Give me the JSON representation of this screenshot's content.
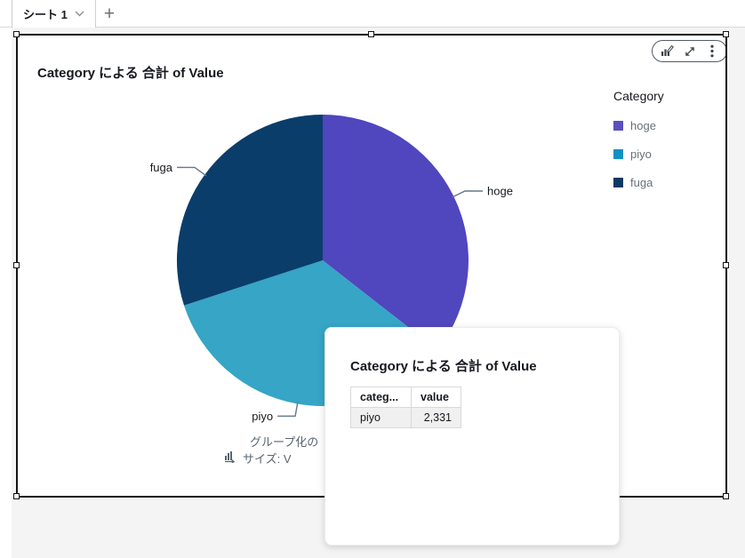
{
  "tab_bar": {
    "active_tab": "シート 1",
    "add_tab_label": "+"
  },
  "visual": {
    "title": "Category による 合計 of Value",
    "menu_icons": [
      "edit-visual",
      "maximize",
      "menu"
    ],
    "legend": {
      "title": "Category",
      "items": [
        {
          "label": "hoge",
          "color": "#5A4FC0"
        },
        {
          "label": "piyo",
          "color": "#0E93C2"
        },
        {
          "label": "fuga",
          "color": "#0A3A63"
        }
      ]
    },
    "field_hint": {
      "line1": "グループ化の",
      "line2": "サイズ: V"
    }
  },
  "chart_data": {
    "type": "pie",
    "title": "Category による 合計 of Value",
    "legend_title": "Category",
    "legend_position": "right",
    "categories": [
      "hoge",
      "piyo",
      "fuga"
    ],
    "labels": [
      "hoge",
      "piyo",
      "fuga"
    ],
    "colors": [
      "#5046BE",
      "#36A5C6",
      "#0B3D6B"
    ],
    "angles_deg": [
      128,
      124,
      108
    ],
    "percent_estimates": [
      35.5,
      34.5,
      30.0
    ],
    "shown_values": {
      "piyo": 2331
    },
    "label_color": "#16191f",
    "leader_color": "#64788c"
  },
  "tooltip": {
    "title": "Category による 合計 of Value",
    "table": {
      "headers": [
        "categ...",
        "value"
      ],
      "rows": [
        [
          "piyo",
          "2,331"
        ]
      ]
    }
  },
  "colors": {
    "canvas": "#f4f4f4",
    "selection_border": "#141414",
    "legend_text": "#687078",
    "hint_text": "#5a6570"
  }
}
